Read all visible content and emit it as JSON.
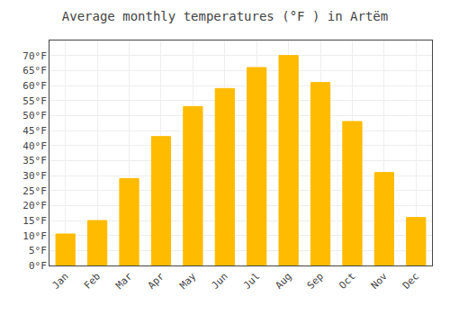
{
  "chart_data": {
    "type": "bar",
    "title": "Average monthly temperatures (°F ) in Artëm",
    "categories": [
      "Jan",
      "Feb",
      "Mar",
      "Apr",
      "May",
      "Jun",
      "Jul",
      "Aug",
      "Sep",
      "Oct",
      "Nov",
      "Dec"
    ],
    "values": [
      10.5,
      15,
      29,
      43,
      53,
      59,
      66,
      70,
      61,
      48,
      31,
      16
    ],
    "color": "#FFBB00",
    "ylim": [
      0,
      75
    ],
    "yticks": [
      {
        "value": 0,
        "label": "0°F"
      },
      {
        "value": 5,
        "label": "5°F"
      },
      {
        "value": 10,
        "label": "10°F"
      },
      {
        "value": 15,
        "label": "15°F"
      },
      {
        "value": 20,
        "label": "20°F"
      },
      {
        "value": 25,
        "label": "25°F"
      },
      {
        "value": 30,
        "label": "30°F"
      },
      {
        "value": 35,
        "label": "35°F"
      },
      {
        "value": 40,
        "label": "40°F"
      },
      {
        "value": 45,
        "label": "45°F"
      },
      {
        "value": 50,
        "label": "50°F"
      },
      {
        "value": 55,
        "label": "55°F"
      },
      {
        "value": 60,
        "label": "60°F"
      },
      {
        "value": 65,
        "label": "65°F"
      },
      {
        "value": 70,
        "label": "70°F"
      }
    ],
    "grid": true
  }
}
